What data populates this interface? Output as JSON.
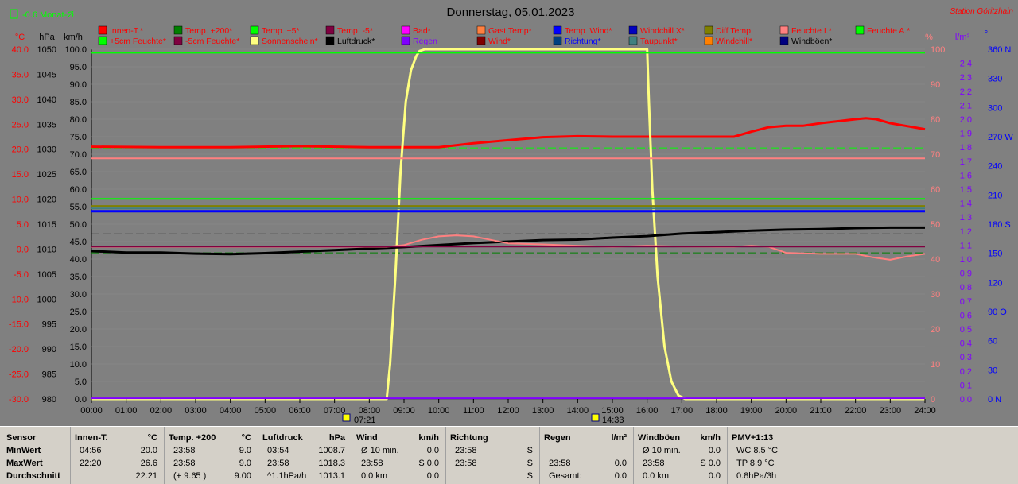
{
  "title": "Donnerstag, 05.01.2023",
  "station": "Station Göritzhain",
  "monthly": "-0.6 Monat-Ø",
  "axis_units": {
    "temp": "°C",
    "pressure": "hPa",
    "speed": "km/h",
    "percent": "%",
    "rain": "l/m²",
    "direction": "°"
  },
  "legend": [
    {
      "label": "Innen-T.*",
      "color": "#ff0000",
      "text_color": "#ff0000"
    },
    {
      "label": "Temp. +200*",
      "color": "#008000",
      "text_color": "#ff0000"
    },
    {
      "label": "Temp. +5*",
      "color": "#00ff00",
      "text_color": "#ff0000"
    },
    {
      "label": "Temp. -5*",
      "color": "#800040",
      "text_color": "#ff0000"
    },
    {
      "label": "Bad*",
      "color": "#ff00ff",
      "text_color": "#ff0000"
    },
    {
      "label": "Gast Temp*",
      "color": "#ff8040",
      "text_color": "#ff0000"
    },
    {
      "label": "Temp. Wind*",
      "color": "#0000ff",
      "text_color": "#ff0000"
    },
    {
      "label": "Windchill X*",
      "color": "#0000c0",
      "text_color": "#ff0000"
    },
    {
      "label": "Diff Temp.",
      "color": "#808000",
      "text_color": "#ff0000"
    },
    {
      "label": "Feuchte I.*",
      "color": "#ff8080",
      "text_color": "#ff0000"
    },
    {
      "label": "Feuchte A.*",
      "color": "#00ff00",
      "text_color": "#ff0000"
    },
    {
      "label": "+5cm Feuchte*",
      "color": "#00ff00",
      "text_color": "#ff0000"
    },
    {
      "label": "-5cm Feuchte*",
      "color": "#800040",
      "text_color": "#ff0000"
    },
    {
      "label": "Sonnenschein*",
      "color": "#ffff80",
      "text_color": "#ff0000"
    },
    {
      "label": "Luftdruck*",
      "color": "#000000",
      "text_color": "#000000"
    },
    {
      "label": "Regen",
      "color": "#8000ff",
      "text_color": "#8000ff"
    },
    {
      "label": "Wind*",
      "color": "#800000",
      "text_color": "#ff0000"
    },
    {
      "label": "Richtung*",
      "color": "#004080",
      "text_color": "#0000ff"
    },
    {
      "label": "Taupunkt*",
      "color": "#408080",
      "text_color": "#ff0000"
    },
    {
      "label": "Windchill*",
      "color": "#ff8000",
      "text_color": "#ff0000"
    },
    {
      "label": "Windböen*",
      "color": "#000080",
      "text_color": "#000000"
    }
  ],
  "chart_data": {
    "type": "line",
    "title": "Donnerstag, 05.01.2023",
    "x_ticks": [
      "00:00",
      "01:00",
      "02:00",
      "03:00",
      "04:00",
      "05:00",
      "06:00",
      "07:00",
      "08:00",
      "09:00",
      "10:00",
      "11:00",
      "12:00",
      "13:00",
      "14:00",
      "15:00",
      "16:00",
      "17:00",
      "18:00",
      "19:00",
      "20:00",
      "21:00",
      "22:00",
      "23:00",
      "24:00"
    ],
    "xlim": [
      0,
      24
    ],
    "y_axes": {
      "temp": {
        "ticks": [
          "40.0",
          "35.0",
          "30.0",
          "25.0",
          "20.0",
          "15.0",
          "10.0",
          "5.0",
          "0.0",
          "-5.0",
          "-10.0",
          "-15.0",
          "-20.0",
          "-25.0",
          "-30.0"
        ],
        "range": [
          -30,
          40
        ]
      },
      "pressure": {
        "ticks": [
          "1050",
          "1045",
          "1040",
          "1035",
          "1030",
          "1025",
          "1020",
          "1015",
          "1010",
          "1005",
          "1000",
          "995",
          "990",
          "985",
          "980"
        ],
        "range": [
          980,
          1050
        ]
      },
      "speed": {
        "ticks": [
          "100.0",
          "95.0",
          "90.0",
          "85.0",
          "80.0",
          "75.0",
          "70.0",
          "65.0",
          "60.0",
          "55.0",
          "50.0",
          "45.0",
          "40.0",
          "35.0",
          "30.0",
          "25.0",
          "20.0",
          "15.0",
          "10.0",
          "5.0",
          "0.0"
        ],
        "range": [
          0,
          100
        ]
      },
      "percent": {
        "ticks": [
          "100",
          "90",
          "80",
          "70",
          "60",
          "50",
          "40",
          "30",
          "20",
          "10",
          "0"
        ],
        "range": [
          0,
          100
        ]
      },
      "rain": {
        "ticks": [
          "2.4",
          "2.3",
          "2.2",
          "2.1",
          "2.0",
          "1.9",
          "1.8",
          "1.7",
          "1.6",
          "1.5",
          "1.4",
          "1.3",
          "1.2",
          "1.1",
          "1.0",
          "0.9",
          "0.8",
          "0.7",
          "0.6",
          "0.5",
          "0.4",
          "0.3",
          "0.2",
          "0.1",
          "0.0"
        ],
        "range": [
          0,
          2.5
        ]
      },
      "direction": {
        "ticks": [
          "360 N",
          "330",
          "300",
          "270 W",
          "240",
          "210",
          "180 S",
          "150",
          "120",
          "90 O",
          "60",
          "30",
          "0 N"
        ],
        "range": [
          0,
          360
        ]
      }
    },
    "sunrise": "07:21",
    "sunset": "14:33",
    "series": [
      {
        "name": "Innen-T.",
        "color": "#ff0000",
        "width": 3,
        "axis": "temp",
        "x": [
          0,
          2,
          4,
          6,
          8,
          9,
          10,
          11,
          12,
          13,
          14,
          15,
          16,
          17,
          18,
          18.5,
          19,
          19.5,
          20,
          20.5,
          21,
          21.5,
          22,
          22.3,
          22.6,
          23,
          23.5,
          24
        ],
        "y": [
          20.5,
          20.4,
          20.4,
          20.6,
          20.4,
          20.4,
          20.4,
          21.2,
          21.8,
          22.4,
          22.6,
          22.5,
          22.5,
          22.5,
          22.5,
          22.5,
          23.5,
          24.4,
          24.7,
          24.7,
          25.2,
          25.6,
          26.0,
          26.2,
          26.0,
          25.2,
          24.6,
          24.0
        ]
      },
      {
        "name": "Sonnenschein",
        "color": "#ffff80",
        "width": 3,
        "axis": "percent",
        "x": [
          0,
          8.5,
          8.6,
          8.75,
          8.9,
          9.05,
          9.2,
          9.35,
          9.45,
          9.6,
          16.0,
          16.05,
          16.15,
          16.3,
          16.5,
          16.7,
          16.9,
          17.1,
          17.3,
          24
        ],
        "y": [
          0,
          0,
          10,
          35,
          65,
          85,
          94,
          98,
          99.5,
          100,
          100,
          85,
          60,
          35,
          15,
          5,
          1,
          0,
          0,
          0
        ]
      },
      {
        "name": "Luftdruck",
        "color": "#000000",
        "width": 3,
        "axis": "pressure",
        "x": [
          0,
          1,
          2,
          3,
          4,
          5,
          6,
          7,
          8,
          9,
          10,
          11,
          12,
          13,
          14,
          15,
          16,
          17,
          18,
          19,
          20,
          21,
          22,
          23,
          24
        ],
        "y": [
          1009.6,
          1009.3,
          1009.3,
          1009.1,
          1009.0,
          1009.2,
          1009.5,
          1009.8,
          1010.1,
          1010.4,
          1010.8,
          1011.2,
          1011.5,
          1011.8,
          1011.9,
          1012.3,
          1012.6,
          1013.1,
          1013.4,
          1013.7,
          1013.9,
          1014.0,
          1014.2,
          1014.3,
          1014.3
        ]
      },
      {
        "name": "Feuchte I.",
        "color": "#ff8080",
        "width": 2,
        "axis": "percent",
        "x": [
          0,
          1,
          2,
          3,
          4,
          5,
          6,
          7,
          8,
          8.5,
          9,
          9.5,
          10,
          10.5,
          11,
          11.5,
          12,
          13,
          14,
          15,
          16,
          17,
          18,
          18.5,
          19,
          19.5,
          20,
          21,
          22,
          22.5,
          23,
          23.5,
          24
        ],
        "y": [
          43.5,
          43.5,
          43.5,
          43.5,
          43.5,
          43.5,
          43.5,
          43.5,
          43.5,
          43.5,
          44.0,
          45.5,
          46.5,
          46.8,
          46.5,
          45.5,
          44.5,
          44.2,
          43.8,
          43.5,
          43.8,
          43.6,
          43.5,
          43.5,
          43.8,
          43.5,
          41.8,
          41.5,
          41.5,
          40.5,
          39.8,
          40.8,
          41.5
        ]
      },
      {
        "name": "Feuchte I. (ref)",
        "color": "#ff8080",
        "width": 2,
        "axis": "percent",
        "x": [
          0,
          24
        ],
        "y": [
          68.8,
          68.8
        ]
      },
      {
        "name": "Temp. Wind",
        "color": "#0000ff",
        "width": 3,
        "axis": "percent",
        "x": [
          0,
          24
        ],
        "y": [
          53.7,
          53.7
        ]
      },
      {
        "name": "Feuchte A.",
        "color": "#00ff00",
        "width": 2,
        "axis": "percent",
        "x": [
          0,
          24
        ],
        "y": [
          57.2,
          57.2
        ]
      },
      {
        "name": "Temp. +5",
        "color": "#00ff00",
        "width": 2,
        "axis": "percent",
        "x": [
          0,
          24
        ],
        "y": [
          99.0,
          99.0
        ]
      },
      {
        "name": "Diff Temp.",
        "color": "#808000",
        "width": 2,
        "axis": "percent",
        "x": [
          0,
          24
        ],
        "y": [
          55.2,
          55.2
        ]
      },
      {
        "name": "Temp. -5",
        "color": "#800040",
        "width": 2,
        "axis": "percent",
        "x": [
          0,
          24
        ],
        "y": [
          43.6,
          43.6
        ]
      },
      {
        "name": "Taupunkt",
        "color": "#408080",
        "width": 2,
        "axis": "percent",
        "x": [
          0,
          24
        ],
        "y": [
          54.5,
          54.5
        ]
      },
      {
        "name": "Regen",
        "color": "#8000ff",
        "width": 2,
        "axis": "percent",
        "x": [
          0,
          24
        ],
        "y": [
          0.2,
          0.2
        ]
      }
    ],
    "dashed_lines": [
      {
        "color": "#000000",
        "axis": "percent",
        "y": 47.2
      },
      {
        "color": "#00ff00",
        "axis": "percent",
        "y": 71.8
      },
      {
        "color": "#008000",
        "axis": "percent",
        "y": 41.8
      }
    ]
  },
  "footer": [
    {
      "name": "sensor",
      "left": 0,
      "width": 88,
      "rows": [
        [
          "Sensor",
          "",
          ""
        ],
        [
          "MinWert",
          "",
          ""
        ],
        [
          "MaxWert",
          "",
          ""
        ],
        [
          "Durchschnitt",
          "",
          ""
        ]
      ]
    },
    {
      "name": "innen",
      "left": 88,
      "width": 118,
      "title": "Innen-T.",
      "unit": "°C",
      "rows": [
        [
          "04:56",
          "20.0"
        ],
        [
          "22:20",
          "26.6"
        ],
        [
          "",
          "22.21"
        ]
      ]
    },
    {
      "name": "temp200",
      "left": 206,
      "width": 118,
      "title": "Temp. +200",
      "unit": "°C",
      "rows": [
        [
          "23:58",
          "9.0"
        ],
        [
          "23:58",
          "9.0"
        ],
        [
          "(+ 9.65 )",
          "9.00"
        ]
      ]
    },
    {
      "name": "luftdruck",
      "left": 324,
      "width": 118,
      "title": "Luftdruck",
      "unit": "hPa",
      "rows": [
        [
          "03:54",
          "1008.7"
        ],
        [
          "23:58",
          "1018.3"
        ],
        [
          "^1.1hPa/h",
          "1013.1"
        ]
      ]
    },
    {
      "name": "wind",
      "left": 442,
      "width": 118,
      "title": "Wind",
      "unit": "km/h",
      "rows": [
        [
          "Ø 10 min.",
          "0.0"
        ],
        [
          "23:58",
          "S 0.0"
        ],
        [
          "0.0 km",
          "0.0"
        ]
      ]
    },
    {
      "name": "richtung",
      "left": 560,
      "width": 118,
      "title": "Richtung",
      "unit": "",
      "rows": [
        [
          "23:58",
          "S"
        ],
        [
          "23:58",
          "S"
        ],
        [
          "",
          "S"
        ]
      ]
    },
    {
      "name": "regen",
      "left": 678,
      "width": 118,
      "title": "Regen",
      "unit": "l/m²",
      "rows": [
        [
          "",
          ""
        ],
        [
          "23:58",
          "0.0"
        ],
        [
          "Gesamt:",
          "0.0"
        ]
      ]
    },
    {
      "name": "windboeen",
      "left": 796,
      "width": 118,
      "title": "Windböen",
      "unit": "km/h",
      "rows": [
        [
          "Ø 10 min.",
          "0.0"
        ],
        [
          "23:58",
          "S 0.0"
        ],
        [
          "0.0 km",
          "0.0"
        ]
      ]
    },
    {
      "name": "pmv",
      "left": 914,
      "width": 366,
      "title": "PMV+1:13",
      "unit": "",
      "rows": [
        [
          "WC 8.5 °C",
          ""
        ],
        [
          "TP 8.9 °C",
          ""
        ],
        [
          "0.8hPa/3h",
          ""
        ]
      ]
    }
  ]
}
